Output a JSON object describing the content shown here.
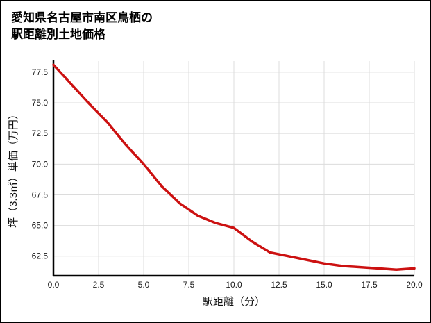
{
  "page": {
    "title_line1": "愛知県名古屋市南区鳥栖の",
    "title_line2": "駅距離別土地価格"
  },
  "chart_data": {
    "type": "line",
    "title": "愛知県名古屋市南区鳥栖の駅距離別土地価格",
    "xlabel": "駅距離（分）",
    "ylabel": "坪（3.3㎡）単価（万円）",
    "x": [
      0,
      1,
      2,
      3,
      4,
      5,
      6,
      7,
      8,
      9,
      10,
      11,
      12,
      13,
      14,
      15,
      16,
      17,
      18,
      19,
      20
    ],
    "y": [
      78.1,
      76.5,
      74.9,
      73.4,
      71.6,
      70.0,
      68.2,
      66.8,
      65.8,
      65.2,
      64.8,
      63.7,
      62.8,
      62.5,
      62.2,
      61.9,
      61.7,
      61.6,
      61.5,
      61.4,
      61.5
    ],
    "xlim": [
      0,
      20
    ],
    "ylim": [
      60.9,
      78.4
    ],
    "xticks": [
      0,
      2.5,
      5,
      7.5,
      10,
      12.5,
      15,
      17.5,
      20
    ],
    "yticks": [
      62.5,
      65,
      67.5,
      70,
      72.5,
      75,
      77.5
    ],
    "tick_decimals": 1,
    "grid": true,
    "legend_position": "none",
    "line_color": "#cc1111",
    "grid_color": "#dcdcdc",
    "axis_color": "#000000"
  }
}
